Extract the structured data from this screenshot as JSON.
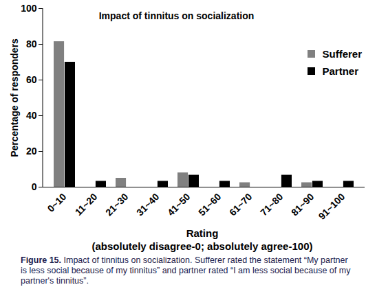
{
  "chart_data": {
    "type": "bar",
    "title": "Impact of tinnitus on socialization",
    "x_label": "Rating\n(absolutely disagree-0; absolutely agree-100)",
    "y_label": "Percentage of responders",
    "caption": "Figure 15. Impact of tinnitus on socialization. Sufferer rated the statement “My partner is less social because of my tinnitus” and partner rated “I am less social because of my partner's tinnitus”.",
    "categories": [
      "0~10",
      "11~20",
      "21~30",
      "31~40",
      "41~50",
      "51~60",
      "61~70",
      "71~80",
      "81~90",
      "91~100"
    ],
    "series": [
      {
        "name": "Sufferer",
        "color": "#808080",
        "values": [
          81.5,
          0,
          5,
          0,
          8,
          0,
          2.5,
          0,
          2.5,
          0
        ]
      },
      {
        "name": "Partner",
        "color": "#000000",
        "values": [
          70,
          3.3,
          0,
          3.3,
          6.7,
          3.3,
          0,
          6.7,
          3.3,
          3.3
        ]
      }
    ],
    "ylim": [
      0,
      100
    ],
    "yticks": [
      0,
      20,
      40,
      60,
      80,
      100
    ],
    "grid": false,
    "legend": "upper right"
  }
}
